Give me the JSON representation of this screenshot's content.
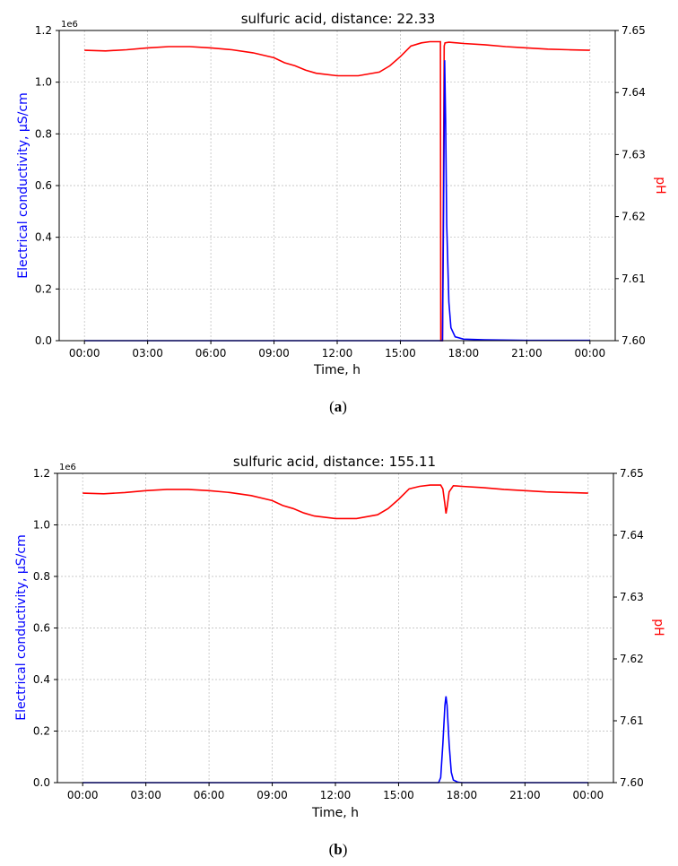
{
  "chart_data": [
    {
      "type": "line",
      "title": "sulfuric acid, distance: 22.33",
      "caption_open": "(",
      "caption_letter": "a",
      "caption_close": ")",
      "xlabel": "Time, h",
      "ylabel": "Electrical conductivity, µS/cm",
      "y2label": "pH",
      "y_offset_label": "1e6",
      "xticks": [
        "00:00",
        "03:00",
        "06:00",
        "09:00",
        "12:00",
        "15:00",
        "18:00",
        "21:00",
        "00:00"
      ],
      "yticks": [
        "0.0",
        "0.2",
        "0.4",
        "0.6",
        "0.8",
        "1.0",
        "1.2"
      ],
      "y2ticks": [
        "7.60",
        "7.61",
        "7.62",
        "7.63",
        "7.64",
        "7.65"
      ],
      "xlim": [
        -1.2,
        25.2
      ],
      "ylim": [
        0,
        1.2
      ],
      "y2lim": [
        7.6,
        7.65
      ],
      "grid": true,
      "colors": {
        "conductivity": "#0000ff",
        "ph": "#ff0000",
        "ylabel": "#0000ff",
        "y2label": "#ff0000"
      },
      "series": [
        {
          "axis": "left",
          "x": [
            0,
            16.85,
            17.0,
            17.05,
            17.1,
            17.15,
            17.2,
            17.3,
            17.4,
            17.6,
            18.0,
            19.0,
            21.0,
            24.0
          ],
          "y": [
            0,
            0,
            0,
            0.5,
            1.085,
            0.85,
            0.45,
            0.15,
            0.05,
            0.015,
            0.006,
            0.003,
            0.001,
            0.001
          ]
        },
        {
          "axis": "right",
          "x": [
            0,
            1,
            2,
            3,
            4,
            5,
            6,
            7,
            8,
            9,
            9.5,
            10,
            10.5,
            11,
            12,
            13,
            14,
            14.5,
            15,
            15.5,
            16,
            16.4,
            16.9,
            16.92,
            17.0,
            17.08,
            17.12,
            17.3,
            18,
            19,
            20,
            21,
            22,
            23,
            24
          ],
          "y": [
            7.6468,
            7.6467,
            7.6469,
            7.6472,
            7.6474,
            7.6474,
            7.6472,
            7.6469,
            7.6464,
            7.6456,
            7.6448,
            7.6443,
            7.6436,
            7.6431,
            7.6427,
            7.6427,
            7.6433,
            7.6443,
            7.6458,
            7.6475,
            7.648,
            7.6482,
            7.6482,
            7.6,
            7.6,
            7.6475,
            7.648,
            7.6481,
            7.6479,
            7.6477,
            7.6474,
            7.6472,
            7.647,
            7.6469,
            7.6468
          ]
        }
      ]
    },
    {
      "type": "line",
      "title": "sulfuric acid, distance: 155.11",
      "caption_open": "(",
      "caption_letter": "b",
      "caption_close": ")",
      "xlabel": "Time, h",
      "ylabel": "Electrical conductivity, µS/cm",
      "y2label": "pH",
      "y_offset_label": "1e6",
      "xticks": [
        "00:00",
        "03:00",
        "06:00",
        "09:00",
        "12:00",
        "15:00",
        "18:00",
        "21:00",
        "00:00"
      ],
      "yticks": [
        "0.0",
        "0.2",
        "0.4",
        "0.6",
        "0.8",
        "1.0",
        "1.2"
      ],
      "y2ticks": [
        "7.60",
        "7.61",
        "7.62",
        "7.63",
        "7.64",
        "7.65"
      ],
      "xlim": [
        -1.2,
        25.2
      ],
      "ylim": [
        0,
        1.2
      ],
      "y2lim": [
        7.6,
        7.65
      ],
      "grid": true,
      "colors": {
        "conductivity": "#0000ff",
        "ph": "#ff0000",
        "ylabel": "#0000ff",
        "y2label": "#ff0000"
      },
      "series": [
        {
          "axis": "left",
          "x": [
            0,
            16.9,
            17.0,
            17.1,
            17.2,
            17.25,
            17.3,
            17.4,
            17.5,
            17.6,
            17.8,
            18.0,
            24.0
          ],
          "y": [
            0,
            0,
            0.02,
            0.15,
            0.3,
            0.335,
            0.3,
            0.15,
            0.04,
            0.01,
            0.002,
            0,
            0
          ]
        },
        {
          "axis": "right",
          "x": [
            0,
            1,
            2,
            3,
            4,
            5,
            6,
            7,
            8,
            9,
            9.5,
            10,
            10.5,
            11,
            12,
            13,
            14,
            14.5,
            15,
            15.5,
            16,
            16.5,
            17.0,
            17.1,
            17.2,
            17.25,
            17.3,
            17.4,
            17.6,
            18,
            19,
            20,
            21,
            22,
            23,
            24
          ],
          "y": [
            7.6468,
            7.6467,
            7.6469,
            7.6472,
            7.6474,
            7.6474,
            7.6472,
            7.6469,
            7.6464,
            7.6456,
            7.6448,
            7.6443,
            7.6436,
            7.6431,
            7.6427,
            7.6427,
            7.6433,
            7.6443,
            7.6458,
            7.6475,
            7.6479,
            7.6481,
            7.6481,
            7.6475,
            7.645,
            7.6435,
            7.6445,
            7.647,
            7.648,
            7.6479,
            7.6477,
            7.6474,
            7.6472,
            7.647,
            7.6469,
            7.6468
          ]
        }
      ]
    }
  ]
}
